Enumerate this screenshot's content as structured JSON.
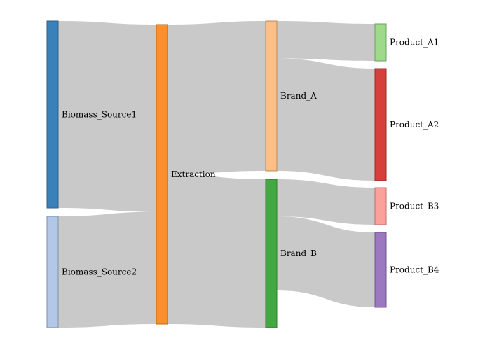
{
  "nodes": [
    {
      "id": "bs1",
      "label": "Biomass_Source1",
      "color": "#3a80b9",
      "stroke": "#2d5f8a",
      "value": 250
    },
    {
      "id": "bs2",
      "label": "Biomass_Source2",
      "color": "#b3c7e6",
      "stroke": "#7f8fa8",
      "value": 150
    },
    {
      "id": "ext",
      "label": "Extraction",
      "color": "#fc8f2d",
      "stroke": "#b86818",
      "value": 400
    },
    {
      "id": "ba",
      "label": "Brand_A",
      "color": "#fdbf86",
      "stroke": "#b8895c",
      "value": 200
    },
    {
      "id": "bb",
      "label": "Brand_B",
      "color": "#44a842",
      "stroke": "#2e7a2e",
      "value": 200
    },
    {
      "id": "pa1",
      "label": "Product_A1",
      "color": "#9fd98b",
      "stroke": "#6f9e60",
      "value": 50
    },
    {
      "id": "pa2",
      "label": "Product_A2",
      "color": "#d73f3c",
      "stroke": "#9a2b29",
      "value": 150
    },
    {
      "id": "pb3",
      "label": "Product_B3",
      "color": "#fca09b",
      "stroke": "#b8726f",
      "value": 50
    },
    {
      "id": "pb4",
      "label": "Product_B4",
      "color": "#9c78c0",
      "stroke": "#6f568a",
      "value": 100
    }
  ],
  "links": [
    {
      "source": "bs1",
      "target": "ext",
      "value": 250
    },
    {
      "source": "bs2",
      "target": "ext",
      "value": 150
    },
    {
      "source": "ext",
      "target": "ba",
      "value": 200
    },
    {
      "source": "ext",
      "target": "bb",
      "value": 200
    },
    {
      "source": "ba",
      "target": "pa1",
      "value": 50
    },
    {
      "source": "ba",
      "target": "pa2",
      "value": 150
    },
    {
      "source": "bb",
      "target": "pb3",
      "value": 50
    },
    {
      "source": "bb",
      "target": "pb4",
      "value": 100
    }
  ],
  "link_color": "#c9c9c9"
}
